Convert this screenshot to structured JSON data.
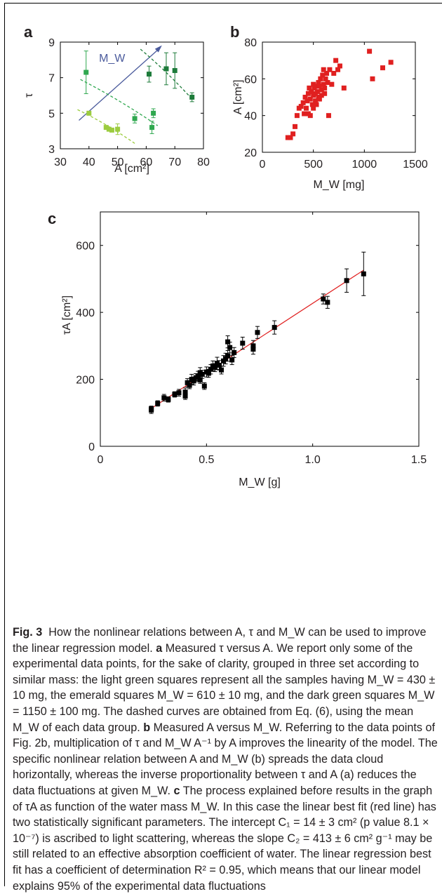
{
  "chart_data": [
    {
      "panel": "a",
      "type": "scatter",
      "xlabel": "A [cm²]",
      "ylabel": "τ",
      "xlim": [
        30,
        80
      ],
      "ylim": [
        3,
        9
      ],
      "xticks": [
        30,
        40,
        50,
        60,
        70,
        80
      ],
      "yticks": [
        3,
        5,
        7,
        9
      ],
      "annotation": "M_W",
      "colors": {
        "light": "#9ccc3f",
        "emerald": "#2fa84f",
        "dark": "#1d7b3a",
        "arrow": "#4a5a9c"
      },
      "series": [
        {
          "group": "light",
          "x": [
            40,
            46,
            47,
            48,
            50
          ],
          "y": [
            5.0,
            4.2,
            4.1,
            4.05,
            4.1
          ],
          "err": [
            0.0,
            0.1,
            0.1,
            0.1,
            0.3
          ],
          "curve_x": [
            36,
            56
          ],
          "curve": [
            5.2,
            3.3
          ]
        },
        {
          "group": "emerald",
          "x": [
            39,
            56,
            62,
            62.5
          ],
          "y": [
            7.3,
            4.7,
            4.2,
            5.0
          ],
          "err": [
            1.2,
            0.25,
            0.35,
            0.25
          ],
          "curve_x": [
            37,
            64
          ],
          "curve": [
            6.9,
            4.3
          ]
        },
        {
          "group": "dark",
          "x": [
            61,
            67,
            70,
            76
          ],
          "y": [
            7.2,
            7.5,
            7.4,
            5.9
          ],
          "err": [
            0.45,
            0.9,
            1.0,
            0.25
          ],
          "curve_x": [
            58,
            76
          ],
          "curve": [
            8.6,
            5.8
          ]
        }
      ]
    },
    {
      "panel": "b",
      "type": "scatter",
      "xlabel": "M_W [mg]",
      "ylabel": "A [cm²]",
      "xlim": [
        0,
        1500
      ],
      "ylim": [
        20,
        80
      ],
      "xticks": [
        0,
        500,
        1000,
        1500
      ],
      "yticks": [
        20,
        40,
        60,
        80
      ],
      "color": "#e02020",
      "points": [
        [
          250,
          28
        ],
        [
          275,
          28
        ],
        [
          300,
          30
        ],
        [
          320,
          34
        ],
        [
          340,
          40
        ],
        [
          360,
          44
        ],
        [
          380,
          45
        ],
        [
          400,
          47
        ],
        [
          410,
          41
        ],
        [
          420,
          50
        ],
        [
          430,
          44
        ],
        [
          440,
          48
        ],
        [
          450,
          52
        ],
        [
          450,
          41
        ],
        [
          460,
          55
        ],
        [
          470,
          49
        ],
        [
          480,
          53
        ],
        [
          490,
          46
        ],
        [
          500,
          51
        ],
        [
          500,
          57
        ],
        [
          510,
          55
        ],
        [
          520,
          52
        ],
        [
          520,
          48
        ],
        [
          530,
          56
        ],
        [
          540,
          53
        ],
        [
          550,
          58
        ],
        [
          550,
          50
        ],
        [
          560,
          56
        ],
        [
          570,
          60
        ],
        [
          580,
          54
        ],
        [
          590,
          62
        ],
        [
          600,
          57
        ],
        [
          600,
          65
        ],
        [
          610,
          55
        ],
        [
          620,
          60
        ],
        [
          630,
          63
        ],
        [
          640,
          58
        ],
        [
          650,
          40
        ],
        [
          660,
          65
        ],
        [
          680,
          57
        ],
        [
          700,
          63
        ],
        [
          720,
          70
        ],
        [
          740,
          65
        ],
        [
          760,
          67
        ],
        [
          800,
          55
        ],
        [
          1050,
          75
        ],
        [
          1080,
          60
        ],
        [
          1180,
          66
        ],
        [
          1260,
          69
        ],
        [
          500,
          44
        ],
        [
          470,
          40
        ],
        [
          530,
          46
        ],
        [
          560,
          49
        ],
        [
          580,
          51
        ],
        [
          610,
          52
        ]
      ]
    },
    {
      "panel": "c",
      "type": "scatter",
      "xlabel": "M_W [g]",
      "ylabel": "τA [cm²]",
      "xlim": [
        0,
        1.5
      ],
      "ylim": [
        0,
        700
      ],
      "xticks": [
        0,
        0.5,
        1.0,
        1.5
      ],
      "xticklabels": [
        "0",
        "0.5",
        "1.0",
        "1.5"
      ],
      "yticks": [
        0,
        200,
        400,
        600
      ],
      "fit": {
        "intercept": 14,
        "slope": 413,
        "color": "#e02020"
      },
      "points": [
        [
          0.24,
          108,
          10
        ],
        [
          0.24,
          112,
          8
        ],
        [
          0.27,
          128,
          8
        ],
        [
          0.3,
          145,
          10
        ],
        [
          0.32,
          140,
          8
        ],
        [
          0.35,
          155,
          8
        ],
        [
          0.37,
          160,
          10
        ],
        [
          0.4,
          162,
          12
        ],
        [
          0.4,
          150,
          10
        ],
        [
          0.41,
          190,
          12
        ],
        [
          0.42,
          182,
          10
        ],
        [
          0.43,
          200,
          15
        ],
        [
          0.44,
          195,
          12
        ],
        [
          0.45,
          205,
          12
        ],
        [
          0.46,
          210,
          14
        ],
        [
          0.47,
          198,
          10
        ],
        [
          0.47,
          220,
          15
        ],
        [
          0.48,
          215,
          12
        ],
        [
          0.49,
          180,
          10
        ],
        [
          0.5,
          222,
          15
        ],
        [
          0.51,
          218,
          12
        ],
        [
          0.52,
          230,
          14
        ],
        [
          0.53,
          240,
          15
        ],
        [
          0.54,
          235,
          12
        ],
        [
          0.55,
          248,
          18
        ],
        [
          0.56,
          242,
          14
        ],
        [
          0.57,
          228,
          12
        ],
        [
          0.58,
          255,
          16
        ],
        [
          0.59,
          262,
          16
        ],
        [
          0.6,
          270,
          16
        ],
        [
          0.6,
          312,
          18
        ],
        [
          0.61,
          295,
          16
        ],
        [
          0.62,
          258,
          14
        ],
        [
          0.63,
          280,
          15
        ],
        [
          0.67,
          308,
          18
        ],
        [
          0.72,
          290,
          15
        ],
        [
          0.72,
          300,
          16
        ],
        [
          0.74,
          340,
          18
        ],
        [
          0.82,
          355,
          20
        ],
        [
          1.05,
          440,
          15
        ],
        [
          1.07,
          430,
          18
        ],
        [
          1.16,
          495,
          35
        ],
        [
          1.24,
          515,
          65
        ]
      ]
    }
  ],
  "panel_letters": {
    "a": "a",
    "b": "b",
    "c": "c"
  },
  "caption": {
    "fig_label": "Fig. 3",
    "title": "How the nonlinear relations between A, τ and M_W can be used to improve the linear regression model.",
    "a_label": "a",
    "a_text": "Measured τ versus A. We report only some of the experimental data points, for the sake of clarity, grouped in three set according to similar mass: the light green squares represent all the samples having M_W = 430 ± 10 mg, the emerald squares M_W = 610 ± 10 mg, and the dark green squares M_W = 1150 ± 100 mg. The dashed curves are obtained from Eq. (6), using the mean M_W of each data group.",
    "b_label": "b",
    "b_text": "Measured A versus M_W. Referring to the data points of Fig. 2b, multiplication of τ and M_W A⁻¹ by A improves the linearity of the model. The specific nonlinear relation between A and M_W (b) spreads the data cloud horizontally, whereas the inverse proportionality between τ and A (a) reduces the data fluctuations at given M_W.",
    "c_label": "c",
    "c_text": "The process explained before results in the graph of τA as function of the water mass M_W. In this case the linear best fit (red line) has two statistically significant parameters. The intercept C₁ = 14 ± 3 cm² (p value 8.1 × 10⁻⁷) is ascribed to light scattering, whereas the slope C₂ = 413 ± 6 cm² g⁻¹ may be still related to an effective absorption coefficient of water. The linear regression best fit has a coefficient of determination R² = 0.95, which means that our linear model explains 95% of the experimental data fluctuations"
  }
}
